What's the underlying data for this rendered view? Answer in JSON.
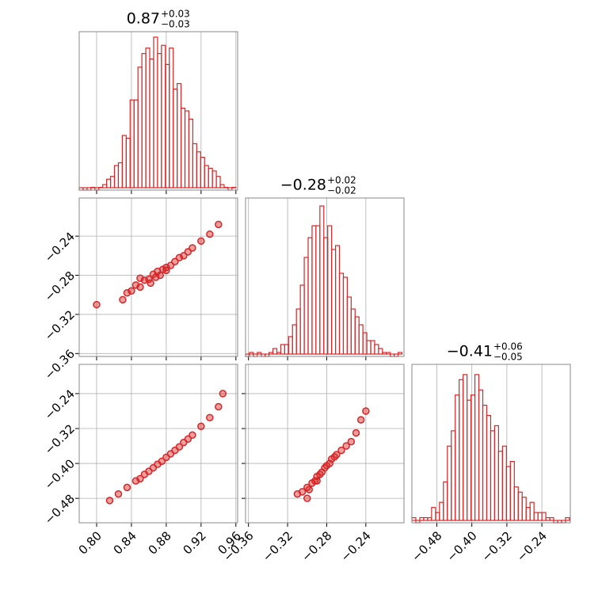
{
  "chart_data": [
    {
      "type": "histogram",
      "title": "0.87",
      "title_sup": "+0.03",
      "title_sub": "−0.03",
      "color": "#d62728",
      "bins": [
        0.78,
        0.7845,
        0.789,
        0.7935,
        0.798,
        0.8025,
        0.807,
        0.8115,
        0.816,
        0.8205,
        0.825,
        0.8295,
        0.834,
        0.8385,
        0.843,
        0.8475,
        0.852,
        0.8565,
        0.861,
        0.8655,
        0.87,
        0.8745,
        0.879,
        0.8835,
        0.888,
        0.8925,
        0.897,
        0.9015,
        0.906,
        0.9105,
        0.915,
        0.9195,
        0.924,
        0.9285,
        0.933,
        0.9375,
        0.942,
        0.9465,
        0.951,
        0.9555,
        0.96
      ],
      "values": [
        0,
        0,
        0,
        1,
        0,
        1,
        2,
        4,
        5,
        9,
        10,
        20,
        19,
        33,
        33,
        45,
        50,
        52,
        48,
        56,
        50,
        53,
        46,
        52,
        37,
        39,
        30,
        29,
        26,
        17,
        14,
        12,
        9,
        8,
        7,
        5,
        2,
        1,
        0,
        1
      ],
      "xlim": [
        0.78,
        0.962
      ],
      "xticks": [
        {
          "value": 0.8,
          "label": "0.80"
        },
        0.84,
        0.88,
        0.92,
        0.96
      ],
      "ylim": [
        0,
        58
      ],
      "grid": true
    },
    {
      "type": "scatter",
      "color": "#d62728",
      "x": [
        0.83,
        0.835,
        0.84,
        0.845,
        0.85,
        0.855,
        0.86,
        0.862,
        0.865,
        0.868,
        0.87,
        0.873,
        0.876,
        0.88,
        0.885,
        0.89,
        0.895,
        0.9,
        0.905,
        0.91,
        0.92,
        0.93,
        0.94,
        0.85,
        0.88,
        0.8
      ],
      "y": [
        -0.305,
        -0.298,
        -0.296,
        -0.29,
        -0.292,
        -0.285,
        -0.284,
        -0.288,
        -0.279,
        -0.282,
        -0.276,
        -0.28,
        -0.274,
        -0.272,
        -0.27,
        -0.266,
        -0.262,
        -0.26,
        -0.256,
        -0.252,
        -0.245,
        -0.238,
        -0.228,
        -0.283,
        -0.275,
        -0.31
      ],
      "xlim": [
        0.78,
        0.962
      ],
      "xticks": [
        {
          "value": 0.8,
          "label": "0.80"
        },
        0.84,
        0.88,
        0.92,
        0.96
      ],
      "ylim": [
        -0.363,
        -0.201
      ],
      "yticks": [
        {
          "value": -0.24,
          "label": "−0.24"
        },
        {
          "value": -0.28,
          "label": "−0.28"
        },
        {
          "value": -0.32,
          "label": "−0.32"
        },
        {
          "value": -0.36,
          "label": "−0.36"
        }
      ],
      "grid": true
    },
    {
      "type": "scatter",
      "color": "#d62728",
      "x": [
        0.815,
        0.825,
        0.835,
        0.845,
        0.85,
        0.855,
        0.86,
        0.865,
        0.87,
        0.875,
        0.88,
        0.885,
        0.89,
        0.895,
        0.9,
        0.905,
        0.91,
        0.92,
        0.93,
        0.94,
        0.945
      ],
      "y": [
        -0.485,
        -0.47,
        -0.455,
        -0.44,
        -0.435,
        -0.425,
        -0.418,
        -0.41,
        -0.402,
        -0.395,
        -0.386,
        -0.378,
        -0.37,
        -0.362,
        -0.352,
        -0.344,
        -0.335,
        -0.315,
        -0.295,
        -0.27,
        -0.24
      ],
      "xlim": [
        0.78,
        0.962
      ],
      "xticks": [
        {
          "value": 0.8,
          "label": "0.80"
        },
        0.84,
        0.88,
        0.92,
        0.96
      ],
      "ylim": [
        -0.536,
        -0.173
      ],
      "yticks": [
        {
          "value": -0.24,
          "label": "−0.24"
        },
        {
          "value": -0.32,
          "label": "−0.32"
        },
        {
          "value": -0.4,
          "label": "−0.40"
        },
        {
          "value": -0.48,
          "label": "−0.48"
        }
      ],
      "grid": true
    },
    {
      "type": "histogram",
      "title": "−0.28",
      "title_sup": "+0.02",
      "title_sub": "−0.02",
      "color": "#d62728",
      "bins": [
        -0.363,
        -0.359,
        -0.355,
        -0.351,
        -0.347,
        -0.343,
        -0.339,
        -0.335,
        -0.331,
        -0.327,
        -0.323,
        -0.319,
        -0.315,
        -0.311,
        -0.307,
        -0.303,
        -0.299,
        -0.295,
        -0.291,
        -0.287,
        -0.283,
        -0.279,
        -0.275,
        -0.271,
        -0.267,
        -0.263,
        -0.259,
        -0.255,
        -0.251,
        -0.247,
        -0.243,
        -0.239,
        -0.235,
        -0.231,
        -0.227,
        -0.223,
        -0.219,
        -0.215,
        -0.211,
        -0.207,
        -0.203
      ],
      "values": [
        0,
        1,
        0,
        1,
        0,
        0,
        1,
        2,
        1,
        3,
        3,
        5,
        8,
        12,
        18,
        25,
        30,
        33,
        33,
        38,
        30,
        33,
        27,
        28,
        21,
        20,
        15,
        12,
        10,
        8,
        6,
        4,
        4,
        3,
        2,
        1,
        1,
        0,
        0,
        1
      ],
      "xlim": [
        -0.363,
        -0.201
      ],
      "xticks": [
        {
          "value": -0.36,
          "label": "−0.36"
        },
        {
          "value": -0.32,
          "label": "−0.32"
        },
        {
          "value": -0.28,
          "label": "−0.28"
        },
        {
          "value": -0.24,
          "label": "−0.24"
        }
      ],
      "ylim": [
        0,
        40
      ],
      "grid": true
    },
    {
      "type": "scatter",
      "color": "#d62728",
      "x": [
        -0.31,
        -0.305,
        -0.3,
        -0.298,
        -0.295,
        -0.292,
        -0.29,
        -0.287,
        -0.285,
        -0.282,
        -0.28,
        -0.277,
        -0.275,
        -0.272,
        -0.27,
        -0.265,
        -0.26,
        -0.255,
        -0.25,
        -0.245,
        -0.24,
        -0.3,
        -0.29
      ],
      "y": [
        -0.47,
        -0.465,
        -0.455,
        -0.46,
        -0.445,
        -0.44,
        -0.43,
        -0.425,
        -0.42,
        -0.41,
        -0.405,
        -0.4,
        -0.39,
        -0.385,
        -0.38,
        -0.37,
        -0.36,
        -0.35,
        -0.33,
        -0.3,
        -0.28,
        -0.48,
        -0.44
      ],
      "xlim": [
        -0.363,
        -0.201
      ],
      "xticks": [
        {
          "value": -0.36,
          "label": "−0.36"
        },
        {
          "value": -0.32,
          "label": "−0.32"
        },
        {
          "value": -0.28,
          "label": "−0.28"
        },
        {
          "value": -0.24,
          "label": "−0.24"
        }
      ],
      "ylim": [
        -0.536,
        -0.173
      ],
      "yticks": [
        {
          "value": -0.24,
          "label": "−0.24"
        },
        {
          "value": -0.32,
          "label": "−0.32"
        },
        {
          "value": -0.4,
          "label": "−0.40"
        },
        {
          "value": -0.48,
          "label": "−0.48"
        }
      ],
      "grid": true
    },
    {
      "type": "histogram",
      "title": "−0.41",
      "title_sup": "+0.06",
      "title_sub": "−0.05",
      "color": "#d62728",
      "bins": [
        -0.537,
        -0.528,
        -0.519,
        -0.51,
        -0.501,
        -0.492,
        -0.483,
        -0.474,
        -0.465,
        -0.456,
        -0.447,
        -0.438,
        -0.429,
        -0.42,
        -0.411,
        -0.402,
        -0.393,
        -0.384,
        -0.375,
        -0.366,
        -0.357,
        -0.348,
        -0.339,
        -0.33,
        -0.321,
        -0.312,
        -0.303,
        -0.294,
        -0.285,
        -0.276,
        -0.267,
        -0.258,
        -0.249,
        -0.24,
        -0.231,
        -0.222,
        -0.213,
        -0.204,
        -0.195,
        -0.186,
        -0.177
      ],
      "values": [
        1,
        0,
        1,
        1,
        1,
        3,
        2,
        4,
        8,
        15,
        18,
        25,
        28,
        29,
        24,
        25,
        29,
        26,
        23,
        21,
        18,
        19,
        14,
        15,
        11,
        12,
        7,
        6,
        5,
        3,
        4,
        2,
        2,
        2,
        1,
        1,
        0,
        0,
        0,
        1
      ],
      "xlim": [
        -0.537,
        -0.175
      ],
      "xticks": [
        {
          "value": -0.48,
          "label": "−0.48"
        },
        {
          "value": -0.4,
          "label": "−0.40"
        },
        {
          "value": -0.32,
          "label": "−0.32"
        },
        {
          "value": -0.24,
          "label": "−0.24"
        }
      ],
      "ylim": [
        0,
        31
      ],
      "grid": true
    }
  ]
}
